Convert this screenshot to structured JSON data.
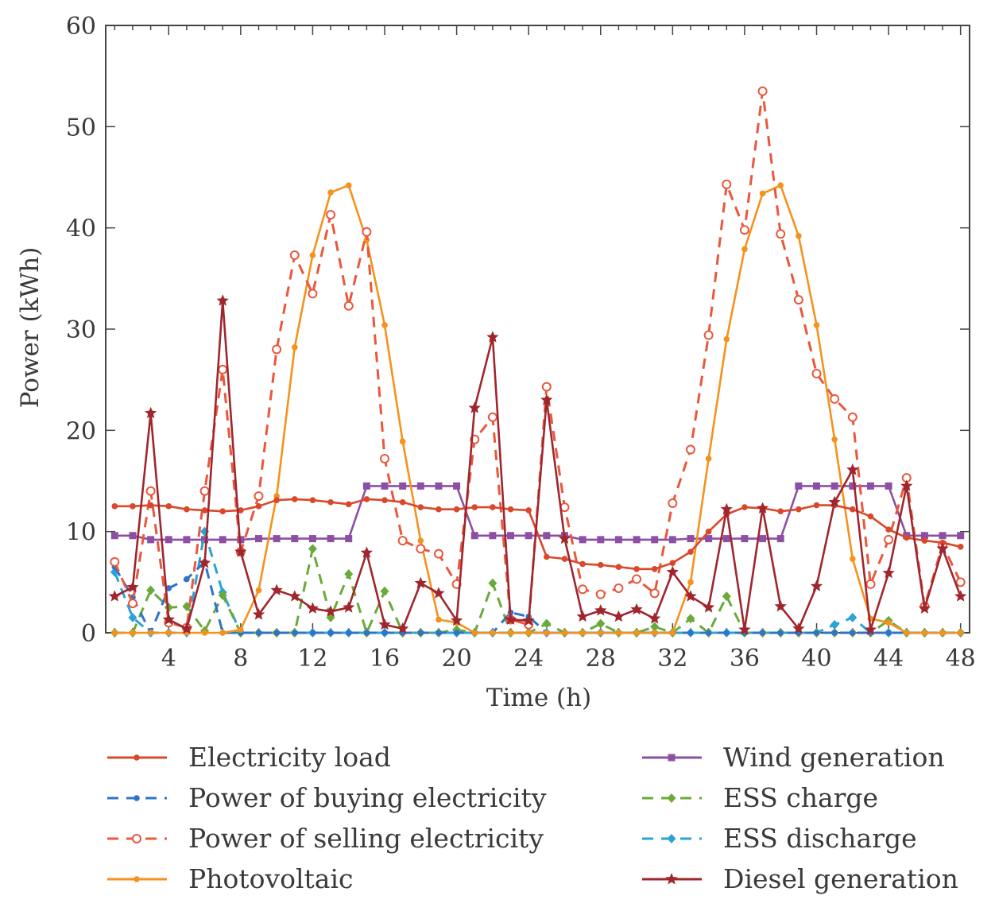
{
  "chart_data": {
    "type": "line",
    "title": "",
    "xlabel": "Time (h)",
    "ylabel": "Power (kWh)",
    "xlim": [
      0.5,
      48.5
    ],
    "ylim": [
      0,
      60
    ],
    "xticks": [
      4,
      8,
      12,
      16,
      20,
      24,
      28,
      32,
      36,
      40,
      44,
      48
    ],
    "yticks": [
      0,
      10,
      20,
      30,
      40,
      50,
      60
    ],
    "grid": false,
    "legend_position": "bottom",
    "x": [
      1,
      2,
      3,
      4,
      5,
      6,
      7,
      8,
      9,
      10,
      11,
      12,
      13,
      14,
      15,
      16,
      17,
      18,
      19,
      20,
      21,
      22,
      23,
      24,
      25,
      26,
      27,
      28,
      29,
      30,
      31,
      32,
      33,
      34,
      35,
      36,
      37,
      38,
      39,
      40,
      41,
      42,
      43,
      44,
      45,
      46,
      47,
      48
    ],
    "series": [
      {
        "name": "Electricity load",
        "color": "#d9482b",
        "dash": "solid",
        "marker": "dot",
        "values": [
          12.5,
          12.5,
          12.6,
          12.5,
          12.2,
          12.1,
          12.0,
          12.1,
          12.5,
          13.1,
          13.2,
          13.1,
          12.9,
          12.7,
          13.2,
          13.1,
          12.9,
          12.4,
          12.2,
          12.2,
          12.4,
          12.4,
          12.2,
          12.1,
          7.5,
          7.3,
          6.8,
          6.7,
          6.5,
          6.3,
          6.3,
          6.9,
          8.0,
          10.0,
          11.7,
          12.4,
          12.3,
          12.0,
          12.2,
          12.6,
          12.6,
          12.2,
          11.5,
          10.2,
          9.4,
          9.1,
          8.9,
          8.5
        ]
      },
      {
        "name": "Power of buying electricity",
        "color": "#2f74c8",
        "dash": "dashed",
        "marker": "dot",
        "values": [
          6.5,
          3.5,
          0.0,
          4.4,
          5.3,
          7.0,
          0,
          0,
          0,
          0,
          0,
          0,
          0,
          0,
          0,
          0,
          0,
          0,
          0,
          0,
          0,
          0,
          2.0,
          1.6,
          0,
          0,
          0,
          0,
          0,
          0,
          0,
          0,
          0,
          0,
          0,
          0,
          0,
          0,
          0,
          0,
          0,
          0,
          0,
          0,
          0,
          0,
          0,
          0
        ]
      },
      {
        "name": "Power of selling electricity",
        "color": "#e8583c",
        "dash": "dashed",
        "marker": "circle",
        "values": [
          7.0,
          2.9,
          14.0,
          1.0,
          0.5,
          14.0,
          26.0,
          8.0,
          13.5,
          28.0,
          37.3,
          33.5,
          41.3,
          32.3,
          39.6,
          17.2,
          9.1,
          8.3,
          7.8,
          4.8,
          19.1,
          21.3,
          1.3,
          0.8,
          24.3,
          12.4,
          4.3,
          3.8,
          4.4,
          5.3,
          3.9,
          12.8,
          18.1,
          29.4,
          44.3,
          39.8,
          53.5,
          39.4,
          32.9,
          25.6,
          23.1,
          21.3,
          4.8,
          9.2,
          15.3,
          2.6,
          8.7,
          5.0
        ]
      },
      {
        "name": "Photovoltaic",
        "color": "#f5921e",
        "dash": "solid",
        "marker": "dot",
        "values": [
          0,
          0,
          0,
          0,
          0,
          0,
          0,
          0.3,
          4.2,
          13.5,
          28.2,
          37.3,
          43.5,
          44.2,
          38.8,
          30.4,
          18.9,
          9.1,
          1.3,
          1.0,
          0,
          0,
          0,
          0,
          0,
          0,
          0,
          0,
          0,
          0,
          0,
          0,
          5.0,
          17.2,
          29.0,
          37.9,
          43.4,
          44.2,
          39.2,
          30.4,
          19.1,
          7.3,
          1.4,
          1.0,
          0,
          0,
          0,
          0
        ]
      },
      {
        "name": "Wind generation",
        "color": "#8d4fa3",
        "dash": "solid",
        "marker": "square",
        "values": [
          9.6,
          9.6,
          9.2,
          9.2,
          9.2,
          9.2,
          9.2,
          9.2,
          9.3,
          9.3,
          9.3,
          9.3,
          9.3,
          9.3,
          14.5,
          14.5,
          14.5,
          14.5,
          14.5,
          14.5,
          9.6,
          9.6,
          9.6,
          9.6,
          9.6,
          9.6,
          9.2,
          9.2,
          9.2,
          9.2,
          9.2,
          9.2,
          9.3,
          9.3,
          9.3,
          9.3,
          9.3,
          9.3,
          14.5,
          14.5,
          14.5,
          14.5,
          14.5,
          14.5,
          9.6,
          9.6,
          9.6,
          9.6
        ]
      },
      {
        "name": "ESS charge",
        "color": "#6aaa3a",
        "dash": "dashed",
        "marker": "diamond",
        "values": [
          0,
          0,
          4.2,
          2.5,
          2.6,
          0.2,
          3.7,
          0,
          0,
          0,
          0,
          8.3,
          1.5,
          5.8,
          0,
          4.1,
          0,
          0,
          0,
          0.3,
          0,
          4.9,
          0,
          0,
          0.9,
          0,
          0,
          0.9,
          0,
          0,
          0.6,
          0,
          1.4,
          0,
          3.6,
          0,
          0,
          0,
          0,
          0,
          0,
          0,
          0,
          1.2,
          0,
          0,
          0,
          0
        ]
      },
      {
        "name": "ESS discharge",
        "color": "#2ba3d6",
        "dash": "dashed",
        "marker": "diamond",
        "values": [
          6.0,
          1.5,
          0,
          0,
          0,
          10.0,
          4.0,
          0,
          0,
          0,
          0,
          0,
          0,
          0,
          0,
          0,
          0,
          0,
          0,
          0,
          0,
          0,
          0,
          0,
          0,
          0,
          0,
          0,
          0,
          0,
          0,
          0,
          0,
          0,
          0,
          0,
          0,
          0,
          0,
          0,
          0.8,
          1.5,
          0,
          0,
          0,
          0,
          0,
          0
        ]
      },
      {
        "name": "Diesel generation",
        "color": "#a0262e",
        "dash": "solid",
        "marker": "star",
        "values": [
          3.6,
          4.5,
          21.7,
          1.3,
          0.4,
          6.9,
          32.8,
          8.0,
          1.8,
          4.2,
          3.6,
          2.4,
          2.1,
          2.5,
          7.9,
          0.8,
          0.4,
          4.9,
          3.9,
          1.2,
          22.2,
          29.2,
          1.3,
          1.2,
          23.0,
          9.3,
          1.6,
          2.2,
          1.6,
          2.3,
          1.4,
          6.0,
          3.6,
          2.5,
          12.2,
          0.3,
          12.3,
          2.6,
          0.4,
          4.6,
          12.9,
          16.1,
          0.3,
          5.9,
          14.5,
          2.4,
          8.3,
          3.6
        ]
      }
    ]
  }
}
